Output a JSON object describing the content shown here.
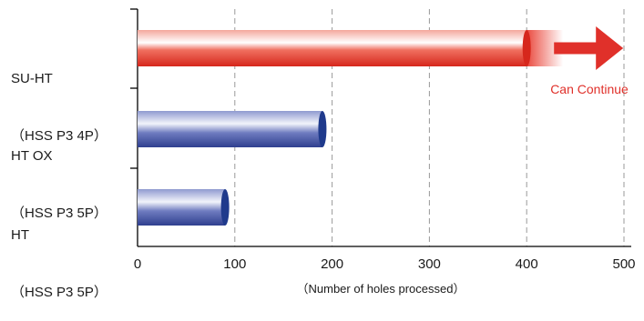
{
  "chart_data": {
    "type": "bar",
    "orientation": "horizontal",
    "categories": [
      {
        "line1": "SU-HT",
        "line2": "（HSS P3 4P）"
      },
      {
        "line1": "HT OX",
        "line2": "（HSS P3 5P）"
      },
      {
        "line1": "HT",
        "line2": "（HSS P3 5P）"
      }
    ],
    "values": [
      400,
      190,
      90
    ],
    "xlim": [
      0,
      500
    ],
    "xticks": [
      0,
      100,
      200,
      300,
      400,
      500
    ],
    "xlabel": "（Number of holes processed）",
    "grid": "vertical dashed",
    "annotation": {
      "text": "Can Continue",
      "category_index": 0
    },
    "colors": {
      "highlight": "#e8362a",
      "normal": "#4a5aa6",
      "arrow": "#e0302a",
      "grid": "#999999"
    }
  }
}
